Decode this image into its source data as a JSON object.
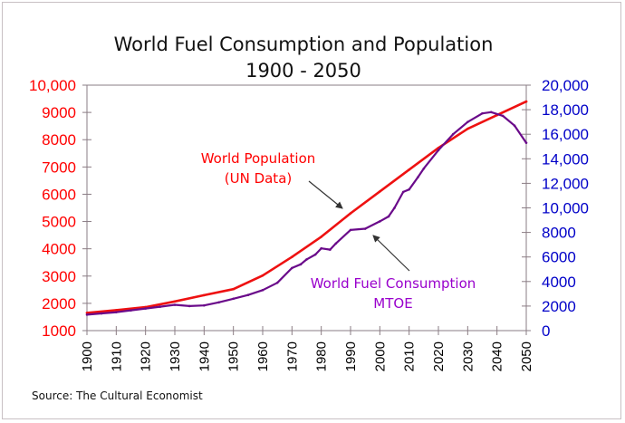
{
  "chart_data": {
    "type": "line",
    "title": "World Fuel Consumption and Population",
    "subtitle": "1900 - 2050",
    "source": "Source: The Cultural Economist",
    "xlabel": "",
    "xlim": [
      1900,
      2050
    ],
    "x_ticks": [
      "1900",
      "1910",
      "1920",
      "1930",
      "1940",
      "1950",
      "1960",
      "1970",
      "1980",
      "1990",
      "2000",
      "2010",
      "2020",
      "2030",
      "2040",
      "2050"
    ],
    "y_left": {
      "label": "",
      "ylim": [
        1000,
        10000
      ],
      "ticks": [
        "1000",
        "2000",
        "3000",
        "4000",
        "5000",
        "6000",
        "7000",
        "8000",
        "9000",
        "10,000"
      ],
      "color": "#ff0000"
    },
    "y_right": {
      "label": "",
      "ylim": [
        0,
        20000
      ],
      "ticks": [
        "0",
        "2000",
        "4000",
        "6000",
        "8000",
        "10,000",
        "12,000",
        "14,000",
        "16,000",
        "18,000",
        "20,000"
      ],
      "color": "#0000c8"
    },
    "grid": false,
    "legend": "none",
    "series": [
      {
        "name": "World Population (UN Data)",
        "axis": "left",
        "color": "#ee1111",
        "x": [
          1900,
          1910,
          1920,
          1930,
          1940,
          1950,
          1960,
          1970,
          1980,
          1990,
          2000,
          2010,
          2020,
          2030,
          2040,
          2050
        ],
        "values": [
          1650,
          1750,
          1860,
          2070,
          2300,
          2520,
          3020,
          3700,
          4440,
          5300,
          6100,
          6900,
          7700,
          8400,
          8900,
          9400
        ]
      },
      {
        "name": "World Fuel Consumption MTOE",
        "axis": "right",
        "color": "#6a0a8a",
        "x": [
          1900,
          1905,
          1910,
          1915,
          1920,
          1925,
          1930,
          1935,
          1940,
          1945,
          1950,
          1955,
          1960,
          1965,
          1970,
          1973,
          1975,
          1978,
          1980,
          1983,
          1985,
          1990,
          1995,
          2000,
          2003,
          2005,
          2008,
          2010,
          2013,
          2015,
          2020,
          2025,
          2030,
          2035,
          2038,
          2042,
          2046,
          2050
        ],
        "values": [
          1300,
          1400,
          1500,
          1650,
          1800,
          1950,
          2100,
          2000,
          2050,
          2300,
          2600,
          2900,
          3300,
          3900,
          5100,
          5400,
          5800,
          6200,
          6700,
          6600,
          7100,
          8200,
          8300,
          8900,
          9300,
          10000,
          11300,
          11500,
          12500,
          13200,
          14700,
          16000,
          17000,
          17700,
          17800,
          17500,
          16700,
          15300
        ]
      }
    ],
    "annotations": [
      {
        "lines": [
          "World Population",
          "(UN Data)"
        ],
        "color": "#ff0000",
        "points_to": "World Population (UN Data)"
      },
      {
        "lines": [
          "World Fuel Consumption",
          "MTOE"
        ],
        "color": "#9900cc",
        "points_to": "World Fuel Consumption MTOE"
      }
    ]
  }
}
